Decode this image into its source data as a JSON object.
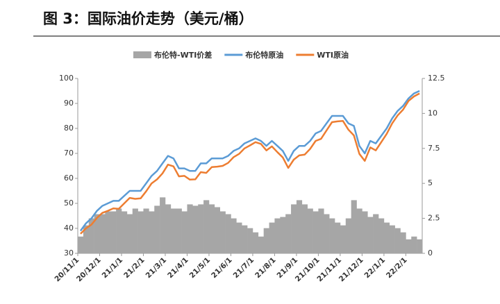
{
  "chart_data": {
    "type": "combo",
    "title": "图 3：国际油价走势（美元/桶）",
    "categories": [
      "20/11/1",
      null,
      null,
      null,
      "20/12/1",
      null,
      null,
      null,
      "21/1/1",
      null,
      null,
      null,
      "21/2/1",
      null,
      null,
      null,
      "21/3/1",
      null,
      null,
      null,
      "21/4/1",
      null,
      null,
      null,
      "21/5/1",
      null,
      null,
      null,
      "21/6/1",
      null,
      null,
      null,
      "21/7/1",
      null,
      null,
      null,
      "21/8/1",
      null,
      null,
      null,
      "21/9/1",
      null,
      null,
      null,
      "21/10/1",
      null,
      null,
      null,
      "21/11/1",
      null,
      null,
      null,
      "21/12/1",
      null,
      null,
      null,
      "22/1/1",
      null,
      null,
      null,
      "22/2/1",
      null,
      null
    ],
    "series": [
      {
        "name": "布伦特-WTI价差",
        "color": "#a6a6a6",
        "kind": "area",
        "axis": "y2",
        "values": [
          1.2,
          2.0,
          2.5,
          2.8,
          2.8,
          3.0,
          3.0,
          3.2,
          3.0,
          2.8,
          3.2,
          3.0,
          3.2,
          3.0,
          3.4,
          4.0,
          3.5,
          3.2,
          3.2,
          3.0,
          3.5,
          3.4,
          3.5,
          3.8,
          3.5,
          3.3,
          3.0,
          2.8,
          2.5,
          2.2,
          2.0,
          1.8,
          1.5,
          1.2,
          1.8,
          2.2,
          2.5,
          2.6,
          2.8,
          3.5,
          3.8,
          3.5,
          3.2,
          3.0,
          3.2,
          2.8,
          2.5,
          2.2,
          2.0,
          2.5,
          3.8,
          3.2,
          3.0,
          2.6,
          2.8,
          2.5,
          2.2,
          2.0,
          1.8,
          1.5,
          1.0,
          1.2,
          1.0
        ]
      },
      {
        "name": "布伦特原油",
        "color": "#5b9bd5",
        "kind": "line",
        "values": [
          39,
          42,
          44,
          47,
          49,
          50,
          51,
          51,
          53,
          55,
          55,
          55,
          58,
          61,
          63,
          66,
          69,
          68,
          64,
          64,
          63,
          63,
          66,
          66,
          68,
          68,
          68,
          69,
          71,
          72,
          74,
          75,
          76,
          75,
          73,
          75,
          73,
          71,
          67,
          71,
          73,
          73,
          75,
          78,
          79,
          82,
          85,
          85,
          85,
          82,
          81,
          73,
          70,
          75,
          74,
          77,
          80,
          84,
          87,
          89,
          92,
          94,
          95
        ]
      },
      {
        "name": "WTI原油",
        "color": "#ed7d31",
        "kind": "line",
        "values": [
          37.8,
          40.0,
          41.5,
          44.2,
          46.2,
          47.0,
          48.0,
          47.8,
          50.0,
          52.2,
          51.8,
          52.0,
          54.8,
          58.0,
          59.6,
          62.0,
          65.5,
          64.8,
          60.8,
          61.0,
          59.5,
          59.6,
          62.5,
          62.2,
          64.5,
          64.7,
          65.0,
          66.2,
          68.5,
          69.8,
          72.0,
          73.2,
          74.5,
          73.8,
          71.2,
          72.8,
          70.5,
          68.4,
          64.2,
          67.5,
          69.2,
          69.5,
          71.8,
          75.0,
          75.8,
          79.2,
          82.5,
          82.8,
          83.0,
          79.5,
          77.2,
          69.8,
          67.0,
          72.4,
          71.2,
          74.5,
          77.8,
          82.0,
          85.2,
          87.5,
          91.0,
          92.8,
          94.0
        ]
      }
    ],
    "ylim": [
      30,
      100
    ],
    "yticks": [
      30,
      40,
      50,
      60,
      70,
      80,
      90,
      100
    ],
    "y2lim": [
      0,
      12.5
    ],
    "y2ticks": [
      0,
      2.5,
      5,
      7.5,
      10,
      12.5
    ],
    "grid": false,
    "legend": "top"
  }
}
